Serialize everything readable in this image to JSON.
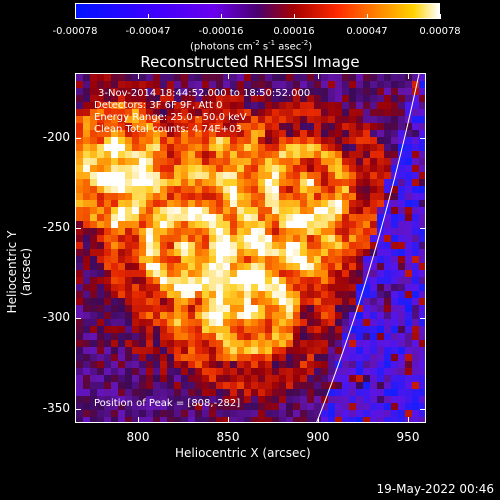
{
  "colorbar": {
    "ticks": [
      "-0.00078",
      "-0.00047",
      "-0.00016",
      "0.00016",
      "0.00047",
      "0.00078"
    ],
    "unit_parts": [
      "(photons cm",
      "-2",
      " s",
      "-1",
      " asec",
      "-2",
      ")"
    ]
  },
  "title": "Reconstructed RHESSI Image",
  "annotations": {
    "time": "3-Nov-2014 18:44:52.000 to 18:50:52.000",
    "detectors": "Detectors: 3F 6F 9F, Att 0",
    "energy": "Energy Range: 25.0 - 50.0 keV",
    "clean": "Clean    Total counts: 4.74E+03",
    "peak": "Position of Peak = [808,-282]"
  },
  "axes": {
    "x_label": "Heliocentric X (arcsec)",
    "y_label": "Heliocentric Y (arcsec)",
    "x_ticks": [
      "800",
      "850",
      "900",
      "950"
    ],
    "y_ticks": [
      "-200",
      "-250",
      "-300",
      "-350"
    ],
    "x_range": [
      765,
      960
    ],
    "y_range": [
      -358,
      -164
    ]
  },
  "datestamp": "19-May-2022 00:46",
  "colors": {
    "limb": "#ffffff",
    "frame": "#ffffff"
  }
}
